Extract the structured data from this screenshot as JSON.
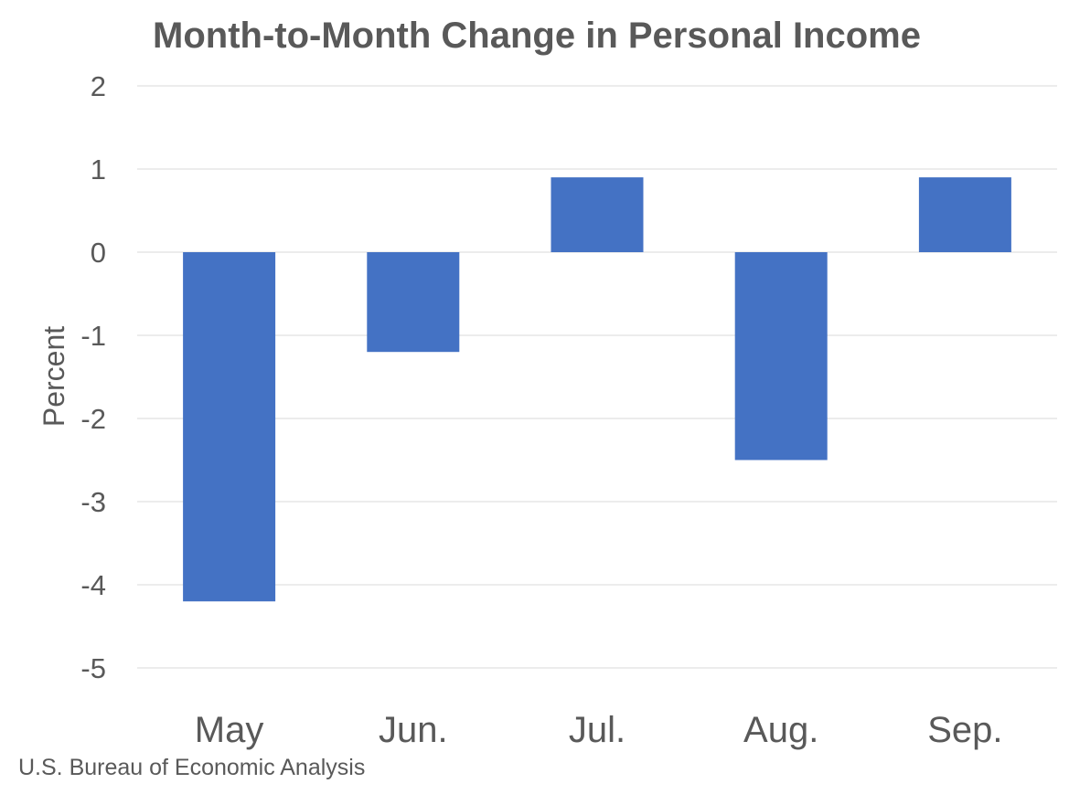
{
  "chart_data": {
    "type": "bar",
    "title": "Month-to-Month Change in Personal Income",
    "xlabel": "",
    "ylabel": "Percent",
    "categories": [
      "May",
      "Jun.",
      "Jul.",
      "Aug.",
      "Sep."
    ],
    "series": [
      {
        "values": [
          -4.2,
          -1.2,
          0.9,
          -2.5,
          0.9
        ],
        "color": "#4472c4"
      }
    ],
    "ylim": [
      -5,
      2
    ],
    "yticks": [
      2,
      1,
      0,
      -1,
      -2,
      -3,
      -4,
      -5
    ],
    "grid": true,
    "legend": "none"
  },
  "source": "U.S. Bureau of Economic Analysis",
  "colors": {
    "bar": "#4472c4",
    "text": "#595959",
    "grid": "#d9d9d9"
  }
}
